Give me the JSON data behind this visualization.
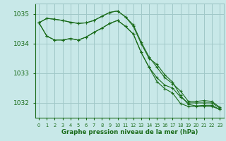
{
  "title": "Graphe pression niveau de la mer (hPa)",
  "bg_color": "#c8e8e8",
  "grid_color": "#a0c8c8",
  "line_color": "#1a6b1a",
  "ylim": [
    1031.5,
    1035.35
  ],
  "yticks": [
    1032,
    1033,
    1034,
    1035
  ],
  "series": [
    [
      1034.7,
      1034.85,
      1034.82,
      1034.78,
      1034.72,
      1034.68,
      1034.7,
      1034.78,
      1034.92,
      1035.05,
      1035.1,
      1034.9,
      1034.63,
      1034.05,
      1033.55,
      1033.2,
      1032.85,
      1032.65,
      1032.4,
      1032.05,
      1032.05,
      1032.08,
      1032.05,
      1031.85
    ],
    [
      1034.7,
      1034.85,
      1034.82,
      1034.78,
      1034.72,
      1034.68,
      1034.7,
      1034.78,
      1034.92,
      1035.05,
      1035.1,
      1034.9,
      1034.58,
      1034.0,
      1033.5,
      1033.3,
      1032.95,
      1032.7,
      1032.25,
      1031.95,
      1031.9,
      1031.92,
      1031.92,
      1031.78
    ],
    [
      1034.7,
      1034.25,
      1034.12,
      1034.12,
      1034.17,
      1034.12,
      1034.22,
      1034.38,
      1034.52,
      1034.68,
      1034.78,
      1034.58,
      1034.32,
      1033.7,
      1033.2,
      1032.85,
      1032.6,
      1032.5,
      1032.2,
      1032.0,
      1032.0,
      1032.0,
      1032.0,
      1031.83
    ],
    [
      1034.7,
      1034.25,
      1034.12,
      1034.12,
      1034.17,
      1034.12,
      1034.22,
      1034.38,
      1034.52,
      1034.68,
      1034.78,
      1034.58,
      1034.32,
      1033.7,
      1033.2,
      1032.72,
      1032.48,
      1032.33,
      1031.98,
      1031.88,
      1031.88,
      1031.88,
      1031.88,
      1031.78
    ]
  ]
}
